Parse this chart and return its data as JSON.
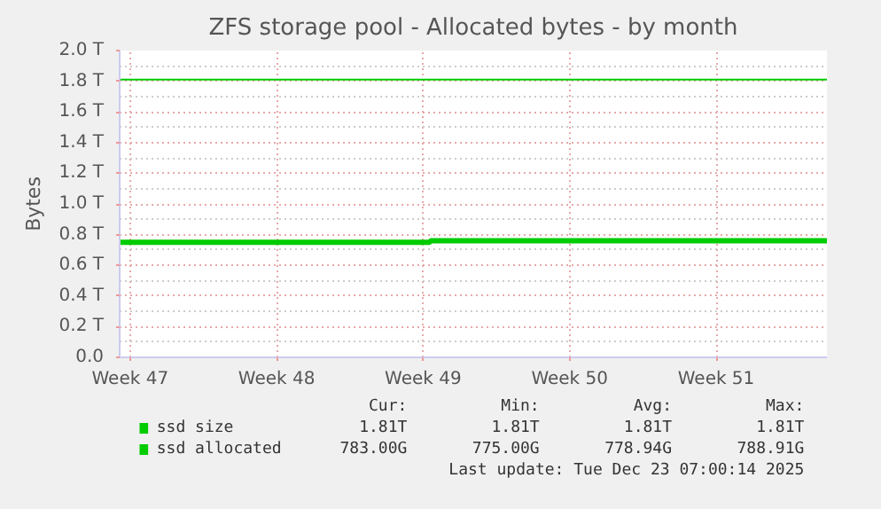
{
  "chart_data": {
    "type": "line",
    "title": "ZFS storage pool - Allocated bytes - by month",
    "ylabel": "Bytes",
    "xlim": [
      "2025-11-19T12:00",
      "2025-12-23T07:00"
    ],
    "xticks": [
      {
        "value": "2025-11-20",
        "label": "Week 47"
      },
      {
        "value": "2025-11-27",
        "label": "Week 48"
      },
      {
        "value": "2025-12-04",
        "label": "Week 49"
      },
      {
        "value": "2025-12-11",
        "label": "Week 50"
      },
      {
        "value": "2025-12-18",
        "label": "Week 51"
      }
    ],
    "ylim": [
      0,
      2.0
    ],
    "yticks": [
      {
        "value": 0,
        "label": "0.0"
      },
      {
        "value": 0.2,
        "label": "0.2 T"
      },
      {
        "value": 0.4,
        "label": "0.4 T"
      },
      {
        "value": 0.6,
        "label": "0.6 T"
      },
      {
        "value": 0.8,
        "label": "0.8 T"
      },
      {
        "value": 1.0,
        "label": "1.0 T"
      },
      {
        "value": 1.2,
        "label": "1.2 T"
      },
      {
        "value": 1.4,
        "label": "1.4 T"
      },
      {
        "value": 1.6,
        "label": "1.6 T"
      },
      {
        "value": 1.8,
        "label": "1.8 T"
      },
      {
        "value": 2.0,
        "label": "2.0 T"
      }
    ],
    "grid": true,
    "legend": "bottom",
    "series": [
      {
        "name": "ssd size",
        "color": "#00cc00",
        "x": [
          "2025-11-19T12:00",
          "2025-12-23T07:00"
        ],
        "values": [
          1.81,
          1.81
        ]
      },
      {
        "name": "ssd allocated",
        "color": "#00cc00",
        "x": [
          "2025-11-19T12:00",
          "2025-12-04T07:00",
          "2025-12-04T09:00",
          "2025-12-23T07:00"
        ],
        "values": [
          0.75,
          0.75,
          0.76,
          0.76
        ]
      }
    ],
    "annotations": [
      "Cur:",
      "Min:",
      "Avg:",
      "Max:",
      "1.81T",
      "1.81T",
      "1.81T",
      "1.81T",
      "783.00G",
      "775.00G",
      "778.94G",
      "788.91G",
      "Last update: Tue Dec 23 07:00:14 2025"
    ]
  }
}
